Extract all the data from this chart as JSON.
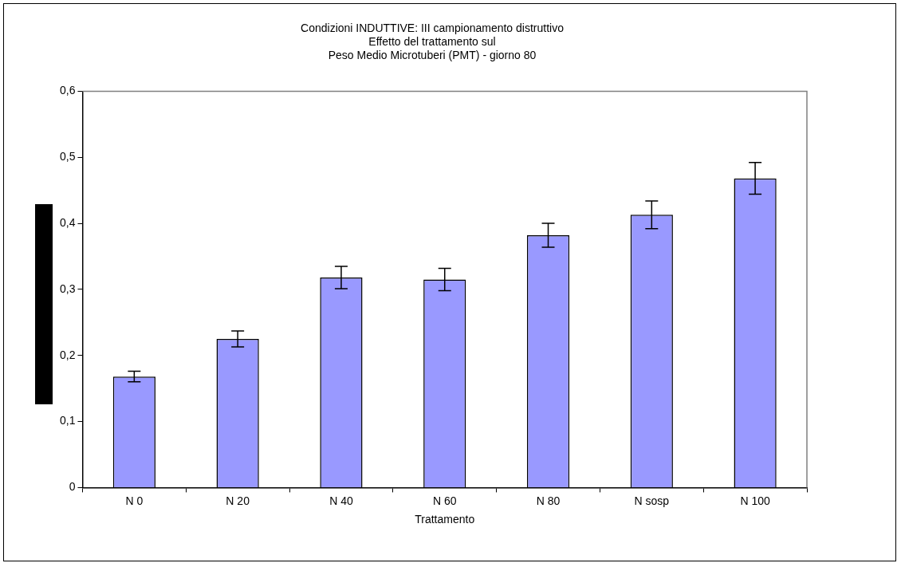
{
  "chart_data": {
    "type": "bar",
    "title": "Condizioni INDUTTIVE: III campionamento distruttivo\nEffetto del trattamento sul\nPeso Medio Microtuberi (PMT) - giorno 80",
    "xlabel": "Trattamento",
    "categories": [
      "N 0",
      "N 20",
      "N 40",
      "N 60",
      "N 80",
      "N sosp",
      "N 100"
    ],
    "values": [
      0.168,
      0.225,
      0.318,
      0.315,
      0.382,
      0.413,
      0.468
    ],
    "errors": [
      0.008,
      0.012,
      0.017,
      0.017,
      0.018,
      0.021,
      0.024
    ],
    "color": "#9999ff",
    "ylim": [
      0,
      0.6
    ],
    "yticks": [
      {
        "value": 0,
        "label": "0"
      },
      {
        "value": 0.1,
        "label": "0,1"
      },
      {
        "value": 0.2,
        "label": "0,2"
      },
      {
        "value": 0.3,
        "label": "0,3"
      },
      {
        "value": 0.4,
        "label": "0,4"
      },
      {
        "value": 0.5,
        "label": "0,5"
      },
      {
        "value": 0.6,
        "label": "0,6"
      }
    ],
    "grid": false,
    "legend": false
  }
}
